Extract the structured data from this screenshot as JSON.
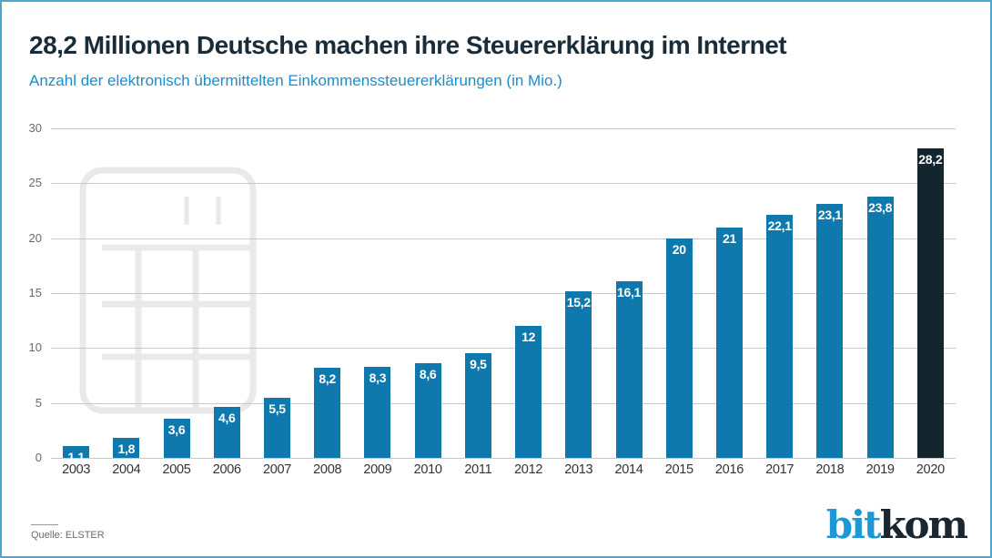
{
  "header": {
    "title": "28,2 Millionen Deutsche machen ihre Steuererklärung im Internet",
    "subtitle": "Anzahl der elektronisch übermittelten Einkommenssteuererklärungen (in Mio.)"
  },
  "footer": {
    "source": "Quelle: ELSTER",
    "logo_bit": "bit",
    "logo_kom": "kom"
  },
  "colors": {
    "page_border": "#4fa6ca",
    "title_text": "#1a2c38",
    "subtitle_text": "#1b8dcb",
    "gridline": "#c8c8c8",
    "y_label_text": "#6a6a6a",
    "x_label_text": "#333333",
    "watermark_stroke": "#e9e9e9",
    "logo_blue": "#1e97d5",
    "logo_dark": "#1a2630"
  },
  "chart_data": {
    "type": "bar",
    "title": "28,2 Millionen Deutsche machen ihre Steuererklärung im Internet",
    "subtitle": "Anzahl der elektronisch übermittelten Einkommenssteuererklärungen (in Mio.)",
    "xlabel": "",
    "ylabel": "",
    "categories": [
      "2003",
      "2004",
      "2005",
      "2006",
      "2007",
      "2008",
      "2009",
      "2010",
      "2011",
      "2012",
      "2013",
      "2014",
      "2015",
      "2016",
      "2017",
      "2018",
      "2019",
      "2020"
    ],
    "values": [
      1.1,
      1.8,
      3.6,
      4.6,
      5.5,
      8.2,
      8.3,
      8.6,
      9.5,
      12,
      15.2,
      16.1,
      20,
      21,
      22.1,
      23.1,
      23.8,
      28.2
    ],
    "value_labels": [
      "1,1",
      "1,8",
      "3,6",
      "4,6",
      "5,5",
      "8,2",
      "8,3",
      "8,6",
      "9,5",
      "12",
      "15,2",
      "16,1",
      "20",
      "21",
      "22,1",
      "23,1",
      "23,8",
      "28,2"
    ],
    "ylim": [
      0,
      30
    ],
    "yticks": [
      0,
      5,
      10,
      15,
      20,
      25,
      30
    ],
    "grid": true,
    "legend": null,
    "bar_color": "#0f79ad",
    "highlight_index": 17,
    "highlight_color": "#13262e",
    "value_label_color": "#ffffff",
    "source": "Quelle: ELSTER"
  }
}
